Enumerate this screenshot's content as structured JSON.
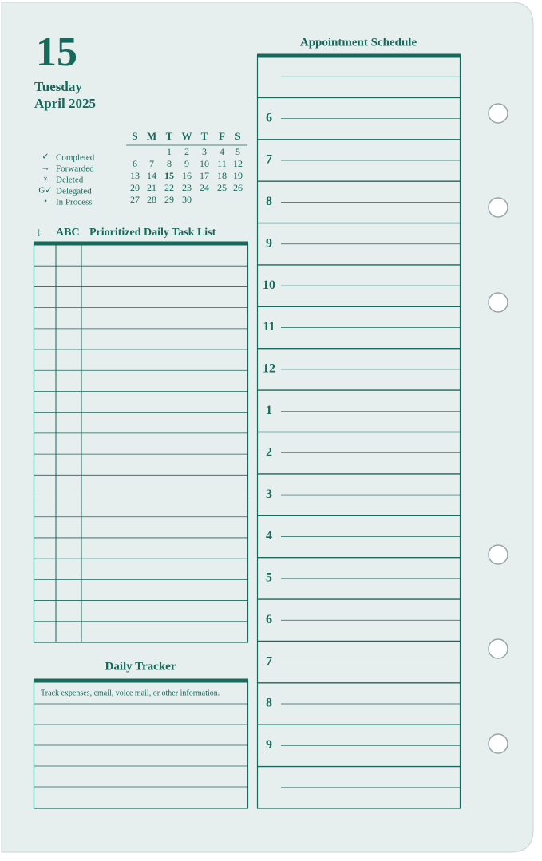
{
  "header": {
    "day": 15,
    "weekday": "Tuesday",
    "month_year": "April 2025"
  },
  "calendar": {
    "weekdays": [
      "S",
      "M",
      "T",
      "W",
      "T",
      "F",
      "S"
    ],
    "weeks": [
      [
        null,
        null,
        1,
        2,
        3,
        4,
        5
      ],
      [
        6,
        7,
        8,
        9,
        10,
        11,
        12
      ],
      [
        13,
        14,
        15,
        16,
        17,
        18,
        19
      ],
      [
        20,
        21,
        22,
        23,
        24,
        25,
        26
      ],
      [
        27,
        28,
        29,
        30,
        null,
        null,
        null
      ]
    ]
  },
  "legend": [
    {
      "symbol": "✓",
      "label": "Completed"
    },
    {
      "symbol": "→",
      "label": "Forwarded"
    },
    {
      "symbol": "×",
      "label": "Deleted"
    },
    {
      "symbol": "G✓",
      "label": "Delegated"
    },
    {
      "symbol": "•",
      "label": "In Process"
    }
  ],
  "task_list": {
    "arrow": "↓",
    "abc": "ABC",
    "title": "Prioritized Daily Task List"
  },
  "tracker": {
    "title": "Daily Tracker",
    "note": "Track expenses, email, voice mail, or other information."
  },
  "appointments": {
    "title": "Appointment Schedule",
    "hours": [
      null,
      6,
      7,
      8,
      9,
      10,
      11,
      12,
      1,
      2,
      3,
      4,
      5,
      6,
      7,
      8,
      9,
      null
    ]
  }
}
